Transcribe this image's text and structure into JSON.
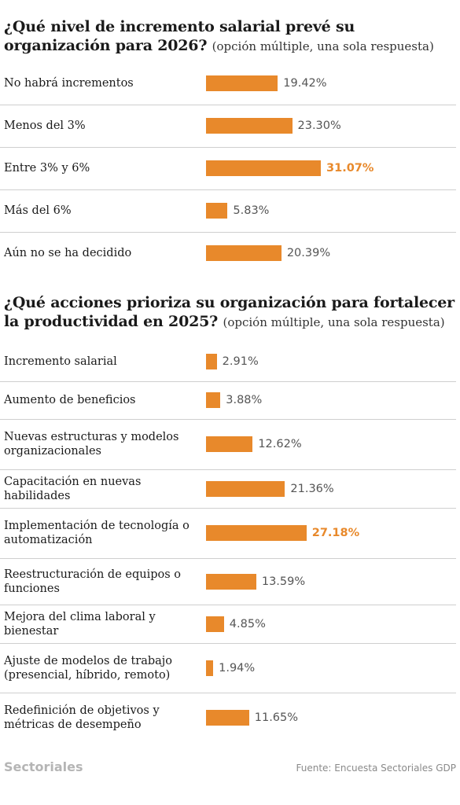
{
  "brand": "Sectoriales",
  "source": "Fuente: Encuesta Sectoriales GDP",
  "chart_data": [
    {
      "type": "bar",
      "title": "¿Qué nivel de incremento salarial prevé su organización para 2026?",
      "subtitle": "(opción múltiple, una sola respuesta)",
      "categories": [
        "No habrá incrementos",
        "Menos del 3%",
        "Entre 3% y 6%",
        "Más del 6%",
        "Aún no se ha decidido"
      ],
      "values": [
        19.42,
        23.3,
        31.07,
        5.83,
        20.39
      ],
      "value_labels": [
        "19.42%",
        "23.30%",
        "31.07%",
        "5.83%",
        "20.39%"
      ],
      "highlight_index": 2,
      "color": "#e8892b",
      "highlight_label_color": "#e8892b"
    },
    {
      "type": "bar",
      "title": "¿Qué acciones prioriza su organización para fortalecer la productividad en 2025?",
      "subtitle": "(opción múltiple, una sola respuesta)",
      "categories": [
        "Incremento salarial",
        "Aumento de beneficios",
        "Nuevas estructuras y modelos organizacionales",
        "Capacitación en nuevas habilidades",
        "Implementación de tecnología o automatización",
        "Reestructuración de equipos o funciones",
        "Mejora del clima laboral y bienestar",
        "Ajuste de modelos de trabajo (presencial, híbrido, remoto)",
        "Redefinición de objetivos y métricas de desempeño"
      ],
      "values": [
        2.91,
        3.88,
        12.62,
        21.36,
        27.18,
        13.59,
        4.85,
        1.94,
        11.65
      ],
      "value_labels": [
        "2.91%",
        "3.88%",
        "12.62%",
        "21.36%",
        "27.18%",
        "13.59%",
        "4.85%",
        "1.94%",
        "11.65%"
      ],
      "highlight_index": 4,
      "color": "#e8892b",
      "highlight_label_color": "#e8892b"
    }
  ]
}
